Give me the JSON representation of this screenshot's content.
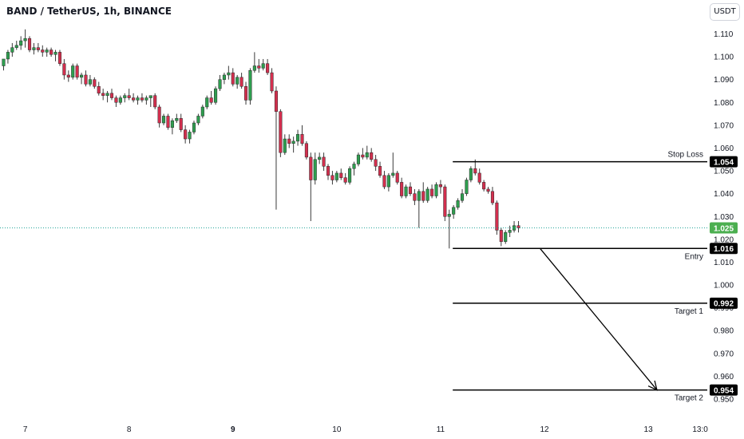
{
  "header": {
    "title": "BAND / TetherUS, 1h, BINANCE",
    "currency_button": "USDT"
  },
  "colors": {
    "up": "#26a69a",
    "down": "#ef5350",
    "up_body": "#2e9e4f",
    "down_body": "#d32f4e",
    "annotation": "#000000",
    "current_price_badge": "#4caf50"
  },
  "chart_data": {
    "type": "candlestick",
    "ylim": [
      0.946,
      1.117
    ],
    "y_ticks": [
      "1.110",
      "1.100",
      "1.090",
      "1.080",
      "1.070",
      "1.060",
      "1.050",
      "1.040",
      "1.030",
      "1.020",
      "1.010",
      "1.000",
      "0.990",
      "0.980",
      "0.970",
      "0.960",
      "0.950"
    ],
    "x_ticks": [
      {
        "label": "7",
        "bar": 5,
        "bold": false
      },
      {
        "label": "8",
        "bar": 29,
        "bold": false
      },
      {
        "label": "9",
        "bar": 53,
        "bold": true
      },
      {
        "label": "10",
        "bar": 77,
        "bold": false
      },
      {
        "label": "11",
        "bar": 101,
        "bold": false
      },
      {
        "label": "12",
        "bar": 125,
        "bold": false
      },
      {
        "label": "13",
        "bar": 149,
        "bold": false
      },
      {
        "label": "13:0",
        "bar": 161,
        "bold": false
      }
    ],
    "candles": [
      [
        1.096,
        1.099,
        1.094,
        1.099
      ],
      [
        1.099,
        1.103,
        1.097,
        1.102
      ],
      [
        1.102,
        1.106,
        1.1,
        1.104
      ],
      [
        1.104,
        1.107,
        1.103,
        1.105
      ],
      [
        1.105,
        1.109,
        1.103,
        1.107
      ],
      [
        1.107,
        1.112,
        1.104,
        1.108
      ],
      [
        1.108,
        1.109,
        1.102,
        1.103
      ],
      [
        1.103,
        1.106,
        1.101,
        1.104
      ],
      [
        1.104,
        1.106,
        1.102,
        1.103
      ],
      [
        1.103,
        1.105,
        1.1,
        1.102
      ],
      [
        1.102,
        1.104,
        1.1,
        1.103
      ],
      [
        1.103,
        1.104,
        1.1,
        1.101
      ],
      [
        1.101,
        1.103,
        1.098,
        1.102
      ],
      [
        1.102,
        1.103,
        1.096,
        1.097
      ],
      [
        1.097,
        1.099,
        1.09,
        1.092
      ],
      [
        1.092,
        1.094,
        1.089,
        1.091
      ],
      [
        1.091,
        1.097,
        1.09,
        1.096
      ],
      [
        1.096,
        1.097,
        1.09,
        1.091
      ],
      [
        1.091,
        1.093,
        1.088,
        1.092
      ],
      [
        1.092,
        1.094,
        1.087,
        1.088
      ],
      [
        1.088,
        1.092,
        1.087,
        1.09
      ],
      [
        1.09,
        1.091,
        1.086,
        1.087
      ],
      [
        1.087,
        1.089,
        1.083,
        1.084
      ],
      [
        1.084,
        1.086,
        1.081,
        1.083
      ],
      [
        1.083,
        1.085,
        1.08,
        1.084
      ],
      [
        1.084,
        1.086,
        1.081,
        1.082
      ],
      [
        1.082,
        1.083,
        1.078,
        1.08
      ],
      [
        1.08,
        1.083,
        1.079,
        1.082
      ],
      [
        1.082,
        1.084,
        1.08,
        1.083
      ],
      [
        1.083,
        1.086,
        1.081,
        1.082
      ],
      [
        1.082,
        1.084,
        1.08,
        1.081
      ],
      [
        1.081,
        1.083,
        1.079,
        1.082
      ],
      [
        1.082,
        1.084,
        1.08,
        1.081
      ],
      [
        1.081,
        1.083,
        1.079,
        1.082
      ],
      [
        1.082,
        1.083,
        1.078,
        1.083
      ],
      [
        1.083,
        1.084,
        1.077,
        1.078
      ],
      [
        1.078,
        1.079,
        1.069,
        1.071
      ],
      [
        1.071,
        1.075,
        1.07,
        1.074
      ],
      [
        1.074,
        1.075,
        1.068,
        1.069
      ],
      [
        1.069,
        1.073,
        1.066,
        1.072
      ],
      [
        1.072,
        1.075,
        1.071,
        1.073
      ],
      [
        1.073,
        1.075,
        1.067,
        1.068
      ],
      [
        1.068,
        1.07,
        1.062,
        1.064
      ],
      [
        1.064,
        1.068,
        1.062,
        1.067
      ],
      [
        1.067,
        1.072,
        1.066,
        1.071
      ],
      [
        1.071,
        1.075,
        1.07,
        1.074
      ],
      [
        1.074,
        1.079,
        1.073,
        1.078
      ],
      [
        1.078,
        1.083,
        1.077,
        1.082
      ],
      [
        1.082,
        1.085,
        1.079,
        1.08
      ],
      [
        1.08,
        1.087,
        1.079,
        1.086
      ],
      [
        1.086,
        1.092,
        1.085,
        1.09
      ],
      [
        1.09,
        1.093,
        1.088,
        1.092
      ],
      [
        1.092,
        1.096,
        1.09,
        1.093
      ],
      [
        1.093,
        1.095,
        1.087,
        1.088
      ],
      [
        1.088,
        1.092,
        1.086,
        1.091
      ],
      [
        1.091,
        1.093,
        1.086,
        1.087
      ],
      [
        1.087,
        1.089,
        1.079,
        1.081
      ],
      [
        1.081,
        1.095,
        1.079,
        1.094
      ],
      [
        1.094,
        1.102,
        1.093,
        1.096
      ],
      [
        1.096,
        1.099,
        1.093,
        1.095
      ],
      [
        1.095,
        1.099,
        1.094,
        1.097
      ],
      [
        1.097,
        1.099,
        1.092,
        1.093
      ],
      [
        1.093,
        1.095,
        1.084,
        1.085
      ],
      [
        1.085,
        1.087,
        1.033,
        1.076
      ],
      [
        1.076,
        1.077,
        1.056,
        1.058
      ],
      [
        1.058,
        1.066,
        1.057,
        1.064
      ],
      [
        1.064,
        1.066,
        1.06,
        1.062
      ],
      [
        1.062,
        1.065,
        1.058,
        1.063
      ],
      [
        1.063,
        1.068,
        1.061,
        1.066
      ],
      [
        1.066,
        1.07,
        1.061,
        1.062
      ],
      [
        1.062,
        1.063,
        1.055,
        1.056
      ],
      [
        1.056,
        1.058,
        1.028,
        1.046
      ],
      [
        1.046,
        1.058,
        1.044,
        1.055
      ],
      [
        1.055,
        1.058,
        1.053,
        1.056
      ],
      [
        1.056,
        1.058,
        1.05,
        1.052
      ],
      [
        1.052,
        1.053,
        1.046,
        1.048
      ],
      [
        1.048,
        1.05,
        1.044,
        1.046
      ],
      [
        1.046,
        1.05,
        1.045,
        1.049
      ],
      [
        1.049,
        1.051,
        1.046,
        1.047
      ],
      [
        1.047,
        1.049,
        1.044,
        1.045
      ],
      [
        1.045,
        1.052,
        1.044,
        1.051
      ],
      [
        1.051,
        1.054,
        1.048,
        1.053
      ],
      [
        1.053,
        1.058,
        1.052,
        1.057
      ],
      [
        1.057,
        1.06,
        1.055,
        1.056
      ],
      [
        1.056,
        1.061,
        1.055,
        1.058
      ],
      [
        1.058,
        1.06,
        1.054,
        1.055
      ],
      [
        1.055,
        1.057,
        1.05,
        1.052
      ],
      [
        1.052,
        1.054,
        1.047,
        1.048
      ],
      [
        1.048,
        1.05,
        1.042,
        1.043
      ],
      [
        1.043,
        1.049,
        1.041,
        1.048
      ],
      [
        1.048,
        1.058,
        1.047,
        1.049
      ],
      [
        1.049,
        1.05,
        1.044,
        1.045
      ],
      [
        1.045,
        1.047,
        1.038,
        1.039
      ],
      [
        1.039,
        1.044,
        1.038,
        1.043
      ],
      [
        1.043,
        1.045,
        1.039,
        1.04
      ],
      [
        1.04,
        1.042,
        1.035,
        1.037
      ],
      [
        1.037,
        1.042,
        1.025,
        1.041
      ],
      [
        1.041,
        1.045,
        1.036,
        1.037
      ],
      [
        1.037,
        1.043,
        1.036,
        1.042
      ],
      [
        1.042,
        1.044,
        1.038,
        1.039
      ],
      [
        1.039,
        1.045,
        1.038,
        1.044
      ],
      [
        1.044,
        1.046,
        1.04,
        1.043
      ],
      [
        1.043,
        1.044,
        1.028,
        1.03
      ],
      [
        1.03,
        1.033,
        1.016,
        1.031
      ],
      [
        1.031,
        1.035,
        1.029,
        1.034
      ],
      [
        1.034,
        1.038,
        1.033,
        1.037
      ],
      [
        1.037,
        1.042,
        1.036,
        1.04
      ],
      [
        1.04,
        1.047,
        1.039,
        1.046
      ],
      [
        1.046,
        1.052,
        1.045,
        1.051
      ],
      [
        1.051,
        1.055,
        1.048,
        1.049
      ],
      [
        1.049,
        1.051,
        1.044,
        1.045
      ],
      [
        1.045,
        1.046,
        1.041,
        1.042
      ],
      [
        1.042,
        1.043,
        1.04,
        1.041
      ],
      [
        1.041,
        1.043,
        1.035,
        1.036
      ],
      [
        1.036,
        1.037,
        1.022,
        1.024
      ],
      [
        1.024,
        1.025,
        1.017,
        1.019
      ],
      [
        1.019,
        1.024,
        1.018,
        1.023
      ],
      [
        1.023,
        1.026,
        1.021,
        1.024
      ],
      [
        1.024,
        1.028,
        1.023,
        1.026
      ],
      [
        1.026,
        1.028,
        1.023,
        1.025
      ]
    ],
    "current_price": "1.025",
    "levels": [
      {
        "name": "stop-loss",
        "label": "Stop Loss",
        "value": 1.054,
        "badge": "1.054",
        "start_bar": 104
      },
      {
        "name": "entry",
        "label": "Entry",
        "value": 1.016,
        "badge": "1.016",
        "start_bar": 104
      },
      {
        "name": "target-1",
        "label": "Target 1",
        "value": 0.992,
        "badge": "0.992",
        "start_bar": 104
      },
      {
        "name": "target-2",
        "label": "Target 2",
        "value": 0.954,
        "badge": "0.954",
        "start_bar": 104
      }
    ],
    "arrow": {
      "from": {
        "bar": 124,
        "value": 1.016
      },
      "to": {
        "bar": 151,
        "value": 0.954
      }
    }
  }
}
